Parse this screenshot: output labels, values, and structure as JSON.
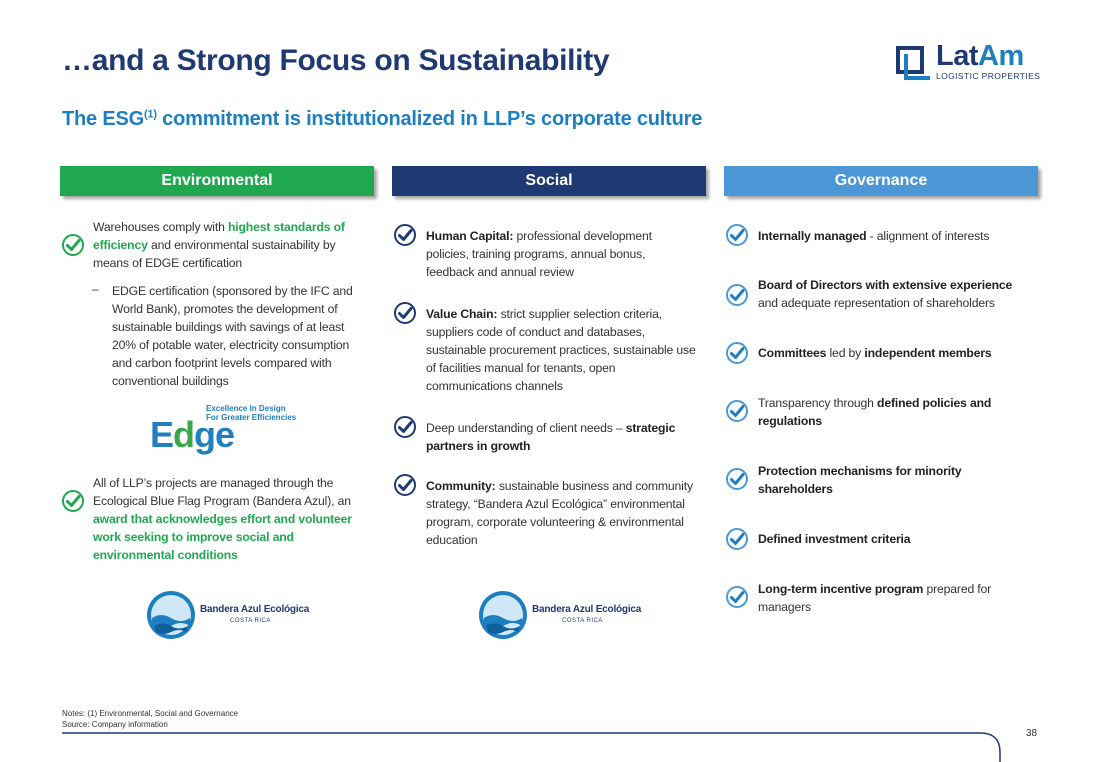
{
  "header": {
    "title": "…and a Strong Focus on Sustainability",
    "subtitle_prefix": "The ESG",
    "subtitle_sup": "(1)",
    "subtitle_suffix": " commitment is institutionalized in LLP’s corporate culture"
  },
  "logo": {
    "word_lat": "Lat",
    "word_am": "Am",
    "sub": "LOGISTIC PROPERTIES"
  },
  "columns": {
    "environmental": "Environmental",
    "social": "Social",
    "governance": "Governance"
  },
  "environmental": {
    "item1": {
      "t1": "Warehouses comply with ",
      "g1": "highest standards of efficiency",
      "t2": " and environmental sustainability by means of EDGE certification"
    },
    "sub1_dash": "–",
    "sub1": "EDGE certification (sponsored by the IFC and World Bank), promotes the development of sustainable buildings with savings of at least 20% of potable water, electricity consumption and carbon footprint levels compared with conventional buildings",
    "edge_logo": {
      "e": "E",
      "d": "d",
      "ge": "ge",
      "tag1": "Excellence In Design",
      "tag2": "For Greater Efficiencies"
    },
    "item2": {
      "t1": "All of LLP’s projects are managed through the Ecological Blue Flag Program (Bandera Azul), an ",
      "g1": "award that acknowledges effort and volunteer work seeking to improve social and environmental conditions"
    }
  },
  "flag_logo": {
    "name": "Bandera Azul Ecológica",
    "country": "COSTA RICA"
  },
  "social": {
    "item1": {
      "b": "Human Capital:",
      "t": " professional development policies, training programs, annual bonus, feedback and annual review"
    },
    "item2": {
      "b": "Value Chain:",
      "t": " strict supplier selection criteria, suppliers code of conduct and databases, sustainable procurement practices, sustainable use of facilities manual for tenants, open communications channels"
    },
    "item3": {
      "t": "Deep understanding of client needs – ",
      "b": "strategic partners in growth"
    },
    "item4": {
      "b": "Community:",
      "t": " sustainable business and community strategy, “Bandera Azul Ecológica” environmental program, corporate volunteering & environmental education"
    }
  },
  "governance": {
    "item1": {
      "b": "Internally managed",
      "t": " - alignment of interests"
    },
    "item2": {
      "b": "Board of Directors with extensive experience",
      "t": " and adequate representation of shareholders"
    },
    "item3": {
      "b1": "Committees",
      "t": " led by ",
      "b2": "independent members"
    },
    "item4": {
      "t": "Transparency through ",
      "b": "defined policies and regulations"
    },
    "item5": {
      "b": "Protection mechanisms for minority shareholders"
    },
    "item6": {
      "b": "Defined investment criteria"
    },
    "item7": {
      "b": "Long-term incentive program",
      "t": " prepared for managers"
    }
  },
  "footer": {
    "notes": "Notes: (1) Environmental, Social and Governance",
    "source": "Source: Company information",
    "page": "38"
  },
  "colors": {
    "navy": "#1f3a73",
    "blue": "#1e7fc0",
    "green": "#1fa84f",
    "light_blue": "#4c98d6"
  }
}
